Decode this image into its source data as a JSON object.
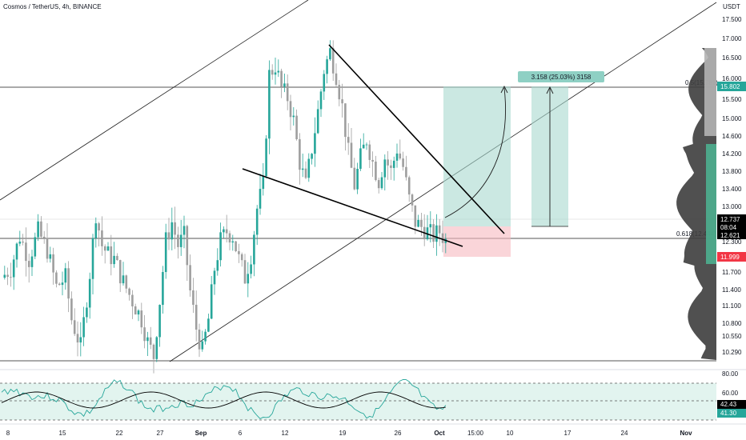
{
  "header": {
    "title": "Cosmos / TetherUS, 4h, BINANCE",
    "currency": "USDT"
  },
  "colors": {
    "up": "#26a69a",
    "down": "#9e9e9e",
    "target": "#a8d8cf",
    "stop": "#f7b9bf",
    "rsi_line": "#26a69a",
    "rsi_ma": "#000000",
    "profile_dark": "#3d3d3d",
    "profile_green": "#4caf8f",
    "profile_light": "#b2b2b2"
  },
  "chart_data": {
    "type": "candlestick",
    "title": "Cosmos / TetherUS, 4h, BINANCE",
    "price_axis": {
      "unit": "USDT",
      "ticks": [
        "17.500",
        "17.000",
        "16.500",
        "16.000",
        "15.500",
        "15.000",
        "14.600",
        "14.200",
        "13.800",
        "13.400",
        "13.000",
        "12.300",
        "11.700",
        "11.400",
        "11.100",
        "10.800",
        "10.550",
        "10.290"
      ]
    },
    "time_axis": [
      "8",
      "15",
      "22",
      "27",
      "Sep",
      "6",
      "12",
      "19",
      "26",
      "Oct",
      "15:00",
      "10",
      "17",
      "24",
      "Nov"
    ],
    "price_path": [
      [
        0,
        11.9
      ],
      [
        3,
        12.1
      ],
      [
        6,
        12.8
      ],
      [
        9,
        12.3
      ],
      [
        12,
        12.9
      ],
      [
        15,
        12.5
      ],
      [
        18,
        11.7
      ],
      [
        21,
        11.9
      ],
      [
        23,
        11.0
      ],
      [
        26,
        10.4
      ],
      [
        29,
        12.0
      ],
      [
        31,
        13.3
      ],
      [
        33,
        12.6
      ],
      [
        35,
        12.4
      ],
      [
        37,
        12.3
      ],
      [
        40,
        11.8
      ],
      [
        43,
        11.4
      ],
      [
        46,
        11.0
      ],
      [
        48,
        10.5
      ],
      [
        50,
        10.2
      ],
      [
        52,
        11.4
      ],
      [
        54,
        12.7
      ],
      [
        56,
        13.1
      ],
      [
        58,
        12.6
      ],
      [
        60,
        12.8
      ],
      [
        62,
        11.6
      ],
      [
        64,
        10.8
      ],
      [
        66,
        10.3
      ],
      [
        68,
        11.0
      ],
      [
        70,
        12.1
      ],
      [
        72,
        12.7
      ],
      [
        74,
        12.9
      ],
      [
        76,
        12.8
      ],
      [
        78,
        12.3
      ],
      [
        80,
        11.9
      ],
      [
        82,
        12.4
      ],
      [
        84,
        13.4
      ],
      [
        86,
        13.9
      ],
      [
        88,
        16.3
      ],
      [
        90,
        16.5
      ],
      [
        92,
        16.0
      ],
      [
        94,
        15.8
      ],
      [
        96,
        15.3
      ],
      [
        98,
        14.4
      ],
      [
        100,
        13.9
      ],
      [
        102,
        14.7
      ],
      [
        104,
        15.5
      ],
      [
        106,
        16.4
      ],
      [
        108,
        16.8
      ],
      [
        110,
        16.3
      ],
      [
        112,
        15.6
      ],
      [
        114,
        14.6
      ],
      [
        116,
        13.9
      ],
      [
        118,
        14.5
      ],
      [
        120,
        14.9
      ],
      [
        122,
        14.4
      ],
      [
        124,
        14.0
      ],
      [
        126,
        14.5
      ],
      [
        128,
        14.2
      ],
      [
        130,
        14.7
      ],
      [
        132,
        14.3
      ],
      [
        134,
        13.6
      ],
      [
        136,
        13.1
      ],
      [
        138,
        13.0
      ],
      [
        140,
        12.9
      ],
      [
        142,
        12.8
      ],
      [
        144,
        12.9
      ],
      [
        146,
        12.7
      ]
    ],
    "rsi": {
      "levels": [
        "80.00",
        "60.00"
      ],
      "ma_value": "42.43",
      "value": "41.30"
    },
    "annotations": {
      "measure_label": "3.158 (25.03%) 3158",
      "fib_05": "0.5(15.781)",
      "fib_0618": "0.618(12.444)",
      "fib_05_price": "15.802",
      "current_price": "12.737",
      "countdown": "08:04",
      "entry_price": "12.621",
      "stop_price": "11.999"
    }
  }
}
